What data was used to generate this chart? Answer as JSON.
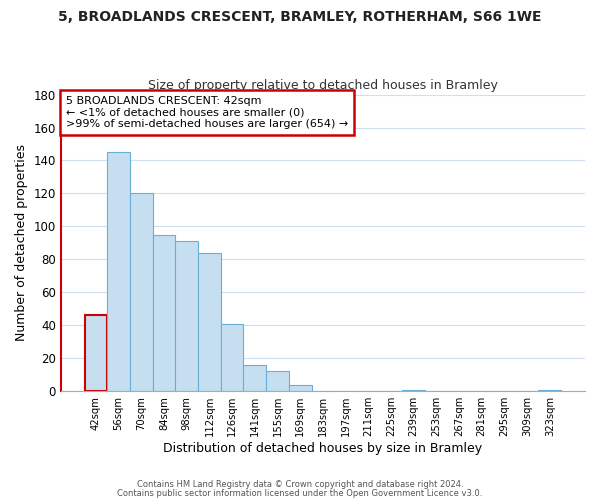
{
  "title_line1": "5, BROADLANDS CRESCENT, BRAMLEY, ROTHERHAM, S66 1WE",
  "title_line2": "Size of property relative to detached houses in Bramley",
  "xlabel": "Distribution of detached houses by size in Bramley",
  "ylabel": "Number of detached properties",
  "bar_labels": [
    "42sqm",
    "56sqm",
    "70sqm",
    "84sqm",
    "98sqm",
    "112sqm",
    "126sqm",
    "141sqm",
    "155sqm",
    "169sqm",
    "183sqm",
    "197sqm",
    "211sqm",
    "225sqm",
    "239sqm",
    "253sqm",
    "267sqm",
    "281sqm",
    "295sqm",
    "309sqm",
    "323sqm"
  ],
  "bar_values": [
    46,
    145,
    120,
    95,
    91,
    84,
    41,
    16,
    12,
    4,
    0,
    0,
    0,
    0,
    1,
    0,
    0,
    0,
    0,
    0,
    1
  ],
  "bar_color": "#c5dff0",
  "highlight_bar_index": 0,
  "highlight_edge_color": "#cc0000",
  "normal_edge_color": "#6aaed6",
  "ylim": [
    0,
    180
  ],
  "yticks": [
    0,
    20,
    40,
    60,
    80,
    100,
    120,
    140,
    160,
    180
  ],
  "annotation_box_text": "5 BROADLANDS CRESCENT: 42sqm\n← <1% of detached houses are smaller (0)\n>99% of semi-detached houses are larger (654) →",
  "footer_line1": "Contains HM Land Registry data © Crown copyright and database right 2024.",
  "footer_line2": "Contains public sector information licensed under the Open Government Licence v3.0.",
  "background_color": "#ffffff",
  "grid_color": "#d0dff0"
}
